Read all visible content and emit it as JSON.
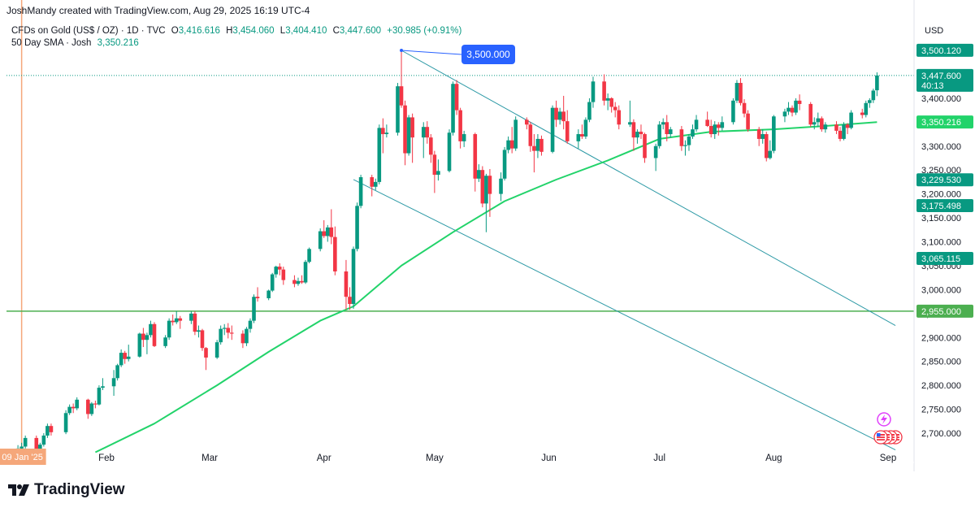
{
  "header": {
    "attribution": "JoshMandy created with TradingView.com, Aug 29, 2025 16:19 UTC-4",
    "symbol": "CFDs on Gold (US$ / OZ) · 1D · TVC",
    "open_label": "O",
    "open": "3,416.616",
    "high_label": "H",
    "high": "3,454.060",
    "low_label": "L",
    "low": "3,404.410",
    "close_label": "C",
    "close": "3,447.600",
    "change": "+30.985 (+0.91%)",
    "sma_label": "50 Day SMA · Josh",
    "sma_value": "3,350.216"
  },
  "currency_label": "USD",
  "brand": "TradingView",
  "colors": {
    "up": "#089981",
    "down": "#f23645",
    "sma": "#22d36a",
    "trendline": "#2e9aa6",
    "support_line": "#4caf50",
    "callout": "#2962ff",
    "date_marker": "#f5a77a"
  },
  "chart_data": {
    "type": "candlestick",
    "symbol": "CFDs on Gold (US$ / OZ)",
    "interval": "1D",
    "ylim": [
      2660,
      3520
    ],
    "y_ticks": [
      "2,700.000",
      "2,750.000",
      "2,800.000",
      "2,850.000",
      "2,900.000",
      "2,950.000",
      "3,000.000",
      "3,050.000",
      "3,100.000",
      "3,150.000",
      "3,200.000",
      "3,250.000",
      "3,300.000",
      "3,350.000",
      "3,400.000",
      "3,450.000",
      "3,500.000"
    ],
    "x_ticks": [
      {
        "label": "Feb",
        "date": "2025-02-01"
      },
      {
        "label": "Mar",
        "date": "2025-03-01"
      },
      {
        "label": "Apr",
        "date": "2025-04-01"
      },
      {
        "label": "May",
        "date": "2025-05-01"
      },
      {
        "label": "Jun",
        "date": "2025-06-01"
      },
      {
        "label": "Jul",
        "date": "2025-07-01"
      },
      {
        "label": "Aug",
        "date": "2025-08-01"
      },
      {
        "label": "Sep",
        "date": "2025-09-01"
      }
    ],
    "date_marker": {
      "label": "09 Jan '25",
      "date": "2025-01-09"
    },
    "price_labels": [
      {
        "value": 3500.12,
        "text": "3,500.120",
        "color": "#089981"
      },
      {
        "value": 3447.6,
        "text": "3,447.600",
        "sub": "40:13",
        "color": "#089981"
      },
      {
        "value": 3350.216,
        "text": "3,350.216",
        "color": "#22d36a"
      },
      {
        "value": 3229.53,
        "text": "3,229.530",
        "color": "#089981"
      },
      {
        "value": 3175.498,
        "text": "3,175.498",
        "color": "#089981"
      },
      {
        "value": 3065.115,
        "text": "3,065.115",
        "color": "#089981"
      },
      {
        "value": 2955.0,
        "text": "2,955.000",
        "color": "#4caf50"
      }
    ],
    "horizontal_lines": [
      {
        "value": 2955.0,
        "style": "solid"
      },
      {
        "value": 3447.6,
        "style": "dotted"
      }
    ],
    "annotation": {
      "text": "3,500.000",
      "anchor_date": "2025-04-22",
      "anchor_value": 3500
    },
    "trendlines": [
      {
        "from": {
          "date": "2025-04-22",
          "value": 3500
        },
        "to": {
          "date": "2025-09-03",
          "value": 2925
        }
      },
      {
        "from": {
          "date": "2025-04-09",
          "value": 3230
        },
        "to": {
          "date": "2025-09-03",
          "value": 2665
        }
      }
    ],
    "candles": [
      [
        "2025-01-08",
        2650,
        2675,
        2645,
        2668
      ],
      [
        "2025-01-09",
        2668,
        2680,
        2660,
        2672
      ],
      [
        "2025-01-10",
        2672,
        2695,
        2668,
        2690
      ],
      [
        "2025-01-13",
        2690,
        2695,
        2655,
        2662
      ],
      [
        "2025-01-14",
        2662,
        2680,
        2658,
        2676
      ],
      [
        "2025-01-15",
        2676,
        2700,
        2672,
        2695
      ],
      [
        "2025-01-16",
        2695,
        2720,
        2690,
        2715
      ],
      [
        "2025-01-17",
        2715,
        2720,
        2695,
        2702
      ],
      [
        "2025-01-21",
        2702,
        2748,
        2698,
        2742
      ],
      [
        "2025-01-22",
        2742,
        2760,
        2738,
        2755
      ],
      [
        "2025-01-23",
        2755,
        2762,
        2742,
        2752
      ],
      [
        "2025-01-24",
        2752,
        2775,
        2748,
        2770
      ],
      [
        "2025-01-27",
        2770,
        2772,
        2730,
        2740
      ],
      [
        "2025-01-28",
        2740,
        2765,
        2736,
        2762
      ],
      [
        "2025-01-29",
        2762,
        2768,
        2752,
        2760
      ],
      [
        "2025-01-30",
        2760,
        2800,
        2758,
        2795
      ],
      [
        "2025-01-31",
        2795,
        2815,
        2790,
        2798
      ],
      [
        "2025-02-03",
        2798,
        2832,
        2778,
        2815
      ],
      [
        "2025-02-04",
        2815,
        2845,
        2810,
        2842
      ],
      [
        "2025-02-05",
        2842,
        2875,
        2838,
        2868
      ],
      [
        "2025-02-06",
        2868,
        2872,
        2845,
        2855
      ],
      [
        "2025-02-07",
        2855,
        2885,
        2850,
        2860
      ],
      [
        "2025-02-10",
        2860,
        2910,
        2858,
        2908
      ],
      [
        "2025-02-11",
        2908,
        2920,
        2880,
        2895
      ],
      [
        "2025-02-12",
        2895,
        2910,
        2865,
        2905
      ],
      [
        "2025-02-13",
        2905,
        2935,
        2900,
        2928
      ],
      [
        "2025-02-14",
        2928,
        2932,
        2880,
        2882
      ],
      [
        "2025-02-17",
        2882,
        2905,
        2878,
        2900
      ],
      [
        "2025-02-18",
        2900,
        2940,
        2895,
        2935
      ],
      [
        "2025-02-19",
        2935,
        2948,
        2925,
        2932
      ],
      [
        "2025-02-20",
        2932,
        2955,
        2928,
        2940
      ],
      [
        "2025-02-21",
        2940,
        2945,
        2918,
        2935
      ],
      [
        "2025-02-24",
        2935,
        2955,
        2928,
        2950
      ],
      [
        "2025-02-25",
        2950,
        2955,
        2905,
        2912
      ],
      [
        "2025-02-26",
        2912,
        2925,
        2900,
        2915
      ],
      [
        "2025-02-27",
        2915,
        2918,
        2872,
        2878
      ],
      [
        "2025-02-28",
        2878,
        2880,
        2832,
        2858
      ],
      [
        "2025-03-03",
        2858,
        2895,
        2855,
        2890
      ],
      [
        "2025-03-04",
        2890,
        2925,
        2885,
        2918
      ],
      [
        "2025-03-05",
        2918,
        2928,
        2905,
        2920
      ],
      [
        "2025-03-06",
        2920,
        2930,
        2898,
        2910
      ],
      [
        "2025-03-07",
        2910,
        2925,
        2895,
        2908
      ],
      [
        "2025-03-10",
        2908,
        2915,
        2878,
        2888
      ],
      [
        "2025-03-11",
        2888,
        2922,
        2882,
        2918
      ],
      [
        "2025-03-12",
        2918,
        2940,
        2910,
        2935
      ],
      [
        "2025-03-13",
        2935,
        2990,
        2930,
        2985
      ],
      [
        "2025-03-14",
        2985,
        3005,
        2975,
        2982
      ],
      [
        "2025-03-17",
        2982,
        3000,
        2978,
        2998
      ],
      [
        "2025-03-18",
        2998,
        3035,
        2995,
        3032
      ],
      [
        "2025-03-19",
        3032,
        3050,
        3025,
        3048
      ],
      [
        "2025-03-20",
        3048,
        3055,
        3030,
        3042
      ],
      [
        "2025-03-21",
        3042,
        3048,
        3010,
        3020
      ],
      [
        "2025-03-24",
        3020,
        3030,
        3005,
        3012
      ],
      [
        "2025-03-25",
        3012,
        3025,
        3008,
        3018
      ],
      [
        "2025-03-26",
        3018,
        3030,
        3012,
        3015
      ],
      [
        "2025-03-27",
        3015,
        3062,
        3012,
        3058
      ],
      [
        "2025-03-28",
        3058,
        3088,
        3055,
        3085
      ],
      [
        "2025-03-31",
        3085,
        3128,
        3080,
        3122
      ],
      [
        "2025-04-01",
        3122,
        3145,
        3108,
        3112
      ],
      [
        "2025-04-02",
        3112,
        3135,
        3100,
        3130
      ],
      [
        "2025-04-03",
        3130,
        3168,
        3095,
        3110
      ],
      [
        "2025-04-04",
        3110,
        3132,
        3030,
        3038
      ],
      [
        "2025-04-07",
        3038,
        3062,
        2958,
        2985
      ],
      [
        "2025-04-08",
        2985,
        3005,
        2958,
        2970
      ],
      [
        "2025-04-09",
        2970,
        3090,
        2960,
        3085
      ],
      [
        "2025-04-10",
        3085,
        3182,
        3080,
        3175
      ],
      [
        "2025-04-11",
        3175,
        3240,
        3170,
        3235
      ],
      [
        "2025-04-14",
        3235,
        3240,
        3195,
        3215
      ],
      [
        "2025-04-15",
        3215,
        3232,
        3208,
        3225
      ],
      [
        "2025-04-16",
        3225,
        3345,
        3220,
        3338
      ],
      [
        "2025-04-17",
        3338,
        3358,
        3285,
        3325
      ],
      [
        "2025-04-18",
        3325,
        3345,
        3318,
        3328
      ],
      [
        "2025-04-21",
        3328,
        3432,
        3322,
        3425
      ],
      [
        "2025-04-22",
        3425,
        3500,
        3380,
        3385
      ],
      [
        "2025-04-23",
        3385,
        3395,
        3260,
        3285
      ],
      [
        "2025-04-24",
        3285,
        3365,
        3280,
        3360
      ],
      [
        "2025-04-25",
        3360,
        3368,
        3265,
        3318
      ],
      [
        "2025-04-28",
        3318,
        3350,
        3275,
        3340
      ],
      [
        "2025-04-29",
        3340,
        3352,
        3305,
        3318
      ],
      [
        "2025-04-30",
        3318,
        3325,
        3265,
        3282
      ],
      [
        "2025-05-01",
        3282,
        3290,
        3202,
        3240
      ],
      [
        "2025-05-02",
        3240,
        3272,
        3228,
        3248
      ],
      [
        "2025-05-05",
        3248,
        3335,
        3245,
        3328
      ],
      [
        "2025-05-06",
        3328,
        3435,
        3322,
        3430
      ],
      [
        "2025-05-07",
        3430,
        3438,
        3365,
        3375
      ],
      [
        "2025-05-08",
        3375,
        3380,
        3295,
        3310
      ],
      [
        "2025-05-09",
        3310,
        3332,
        3298,
        3325
      ],
      [
        "2025-05-12",
        3325,
        3328,
        3205,
        3232
      ],
      [
        "2025-05-13",
        3232,
        3262,
        3225,
        3250
      ],
      [
        "2025-05-14",
        3250,
        3258,
        3172,
        3180
      ],
      [
        "2025-05-15",
        3180,
        3242,
        3120,
        3238
      ],
      [
        "2025-05-16",
        3238,
        3252,
        3152,
        3200
      ],
      [
        "2025-05-19",
        3200,
        3245,
        3185,
        3232
      ],
      [
        "2025-05-20",
        3232,
        3298,
        3228,
        3292
      ],
      [
        "2025-05-21",
        3292,
        3320,
        3285,
        3312
      ],
      [
        "2025-05-22",
        3312,
        3340,
        3285,
        3295
      ],
      [
        "2025-05-23",
        3295,
        3362,
        3290,
        3355
      ],
      [
        "2025-05-26",
        3355,
        3360,
        3335,
        3345
      ],
      [
        "2025-05-27",
        3345,
        3350,
        3288,
        3300
      ],
      [
        "2025-05-28",
        3300,
        3325,
        3245,
        3290
      ],
      [
        "2025-05-29",
        3290,
        3325,
        3275,
        3315
      ],
      [
        "2025-05-30",
        3315,
        3322,
        3280,
        3288
      ],
      [
        "2025-06-02",
        3288,
        3385,
        3285,
        3380
      ],
      [
        "2025-06-03",
        3380,
        3395,
        3340,
        3355
      ],
      [
        "2025-06-04",
        3355,
        3380,
        3345,
        3372
      ],
      [
        "2025-06-05",
        3372,
        3405,
        3335,
        3352
      ],
      [
        "2025-06-06",
        3352,
        3375,
        3305,
        3310
      ],
      [
        "2025-06-09",
        3310,
        3335,
        3295,
        3325
      ],
      [
        "2025-06-10",
        3325,
        3345,
        3315,
        3320
      ],
      [
        "2025-06-11",
        3320,
        3360,
        3315,
        3355
      ],
      [
        "2025-06-12",
        3355,
        3400,
        3350,
        3392
      ],
      [
        "2025-06-13",
        3392,
        3445,
        3380,
        3435
      ],
      [
        "2025-06-16",
        3435,
        3450,
        3385,
        3395
      ],
      [
        "2025-06-17",
        3395,
        3410,
        3375,
        3400
      ],
      [
        "2025-06-18",
        3400,
        3402,
        3370,
        3382
      ],
      [
        "2025-06-19",
        3382,
        3392,
        3360,
        3375
      ],
      [
        "2025-06-20",
        3375,
        3385,
        3335,
        3345
      ],
      [
        "2025-06-23",
        3345,
        3395,
        3340,
        3350
      ],
      [
        "2025-06-24",
        3350,
        3356,
        3290,
        3318
      ],
      [
        "2025-06-25",
        3318,
        3335,
        3305,
        3330
      ],
      [
        "2025-06-26",
        3330,
        3345,
        3315,
        3325
      ],
      [
        "2025-06-27",
        3325,
        3328,
        3265,
        3275
      ],
      [
        "2025-06-30",
        3275,
        3305,
        3248,
        3300
      ],
      [
        "2025-07-01",
        3300,
        3352,
        3295,
        3345
      ],
      [
        "2025-07-02",
        3345,
        3358,
        3335,
        3350
      ],
      [
        "2025-07-03",
        3350,
        3365,
        3310,
        3325
      ],
      [
        "2025-07-04",
        3325,
        3340,
        3318,
        3335
      ],
      [
        "2025-07-07",
        3335,
        3342,
        3290,
        3300
      ],
      [
        "2025-07-08",
        3300,
        3312,
        3280,
        3302
      ],
      [
        "2025-07-09",
        3302,
        3325,
        3290,
        3320
      ],
      [
        "2025-07-10",
        3320,
        3345,
        3315,
        3335
      ],
      [
        "2025-07-11",
        3335,
        3365,
        3330,
        3355
      ],
      [
        "2025-07-14",
        3355,
        3372,
        3340,
        3342
      ],
      [
        "2025-07-15",
        3342,
        3355,
        3318,
        3325
      ],
      [
        "2025-07-16",
        3325,
        3352,
        3315,
        3345
      ],
      [
        "2025-07-17",
        3345,
        3350,
        3322,
        3338
      ],
      [
        "2025-07-18",
        3338,
        3362,
        3332,
        3350
      ],
      [
        "2025-07-21",
        3350,
        3400,
        3345,
        3395
      ],
      [
        "2025-07-22",
        3395,
        3438,
        3390,
        3432
      ],
      [
        "2025-07-23",
        3432,
        3442,
        3385,
        3390
      ],
      [
        "2025-07-24",
        3390,
        3398,
        3360,
        3368
      ],
      [
        "2025-07-25",
        3368,
        3375,
        3330,
        3335
      ],
      [
        "2025-07-28",
        3335,
        3340,
        3300,
        3315
      ],
      [
        "2025-07-29",
        3315,
        3335,
        3305,
        3325
      ],
      [
        "2025-07-30",
        3325,
        3330,
        3268,
        3275
      ],
      [
        "2025-07-31",
        3275,
        3312,
        3272,
        3290
      ],
      [
        "2025-08-01",
        3290,
        3365,
        3285,
        3362
      ],
      [
        "2025-08-04",
        3362,
        3378,
        3350,
        3372
      ],
      [
        "2025-08-05",
        3372,
        3392,
        3365,
        3380
      ],
      [
        "2025-08-06",
        3380,
        3385,
        3362,
        3370
      ],
      [
        "2025-08-07",
        3370,
        3400,
        3365,
        3395
      ],
      [
        "2025-08-08",
        3395,
        3408,
        3375,
        3388
      ],
      [
        "2025-08-11",
        3388,
        3392,
        3340,
        3345
      ],
      [
        "2025-08-12",
        3345,
        3360,
        3335,
        3350
      ],
      [
        "2025-08-13",
        3350,
        3370,
        3340,
        3358
      ],
      [
        "2025-08-14",
        3358,
        3362,
        3330,
        3335
      ],
      [
        "2025-08-15",
        3335,
        3350,
        3328,
        3345
      ],
      [
        "2025-08-18",
        3345,
        3352,
        3325,
        3332
      ],
      [
        "2025-08-19",
        3332,
        3340,
        3310,
        3315
      ],
      [
        "2025-08-20",
        3315,
        3350,
        3312,
        3345
      ],
      [
        "2025-08-21",
        3345,
        3348,
        3325,
        3338
      ],
      [
        "2025-08-22",
        3338,
        3375,
        3335,
        3370
      ],
      [
        "2025-08-25",
        3370,
        3378,
        3358,
        3365
      ],
      [
        "2025-08-26",
        3365,
        3395,
        3360,
        3390
      ],
      [
        "2025-08-27",
        3390,
        3400,
        3380,
        3396
      ],
      [
        "2025-08-28",
        3396,
        3420,
        3390,
        3416
      ],
      [
        "2025-08-29",
        3416.616,
        3454.06,
        3404.41,
        3447.6
      ]
    ],
    "sma_50": [
      [
        "2025-01-29",
        2660
      ],
      [
        "2025-02-14",
        2720
      ],
      [
        "2025-03-03",
        2800
      ],
      [
        "2025-03-17",
        2870
      ],
      [
        "2025-03-31",
        2935
      ],
      [
        "2025-04-09",
        2965
      ],
      [
        "2025-04-22",
        3050
      ],
      [
        "2025-05-06",
        3120
      ],
      [
        "2025-05-20",
        3185
      ],
      [
        "2025-06-03",
        3230
      ],
      [
        "2025-06-17",
        3270
      ],
      [
        "2025-07-01",
        3315
      ],
      [
        "2025-07-15",
        3330
      ],
      [
        "2025-08-01",
        3335
      ],
      [
        "2025-08-15",
        3342
      ],
      [
        "2025-08-29",
        3350.216
      ]
    ]
  }
}
